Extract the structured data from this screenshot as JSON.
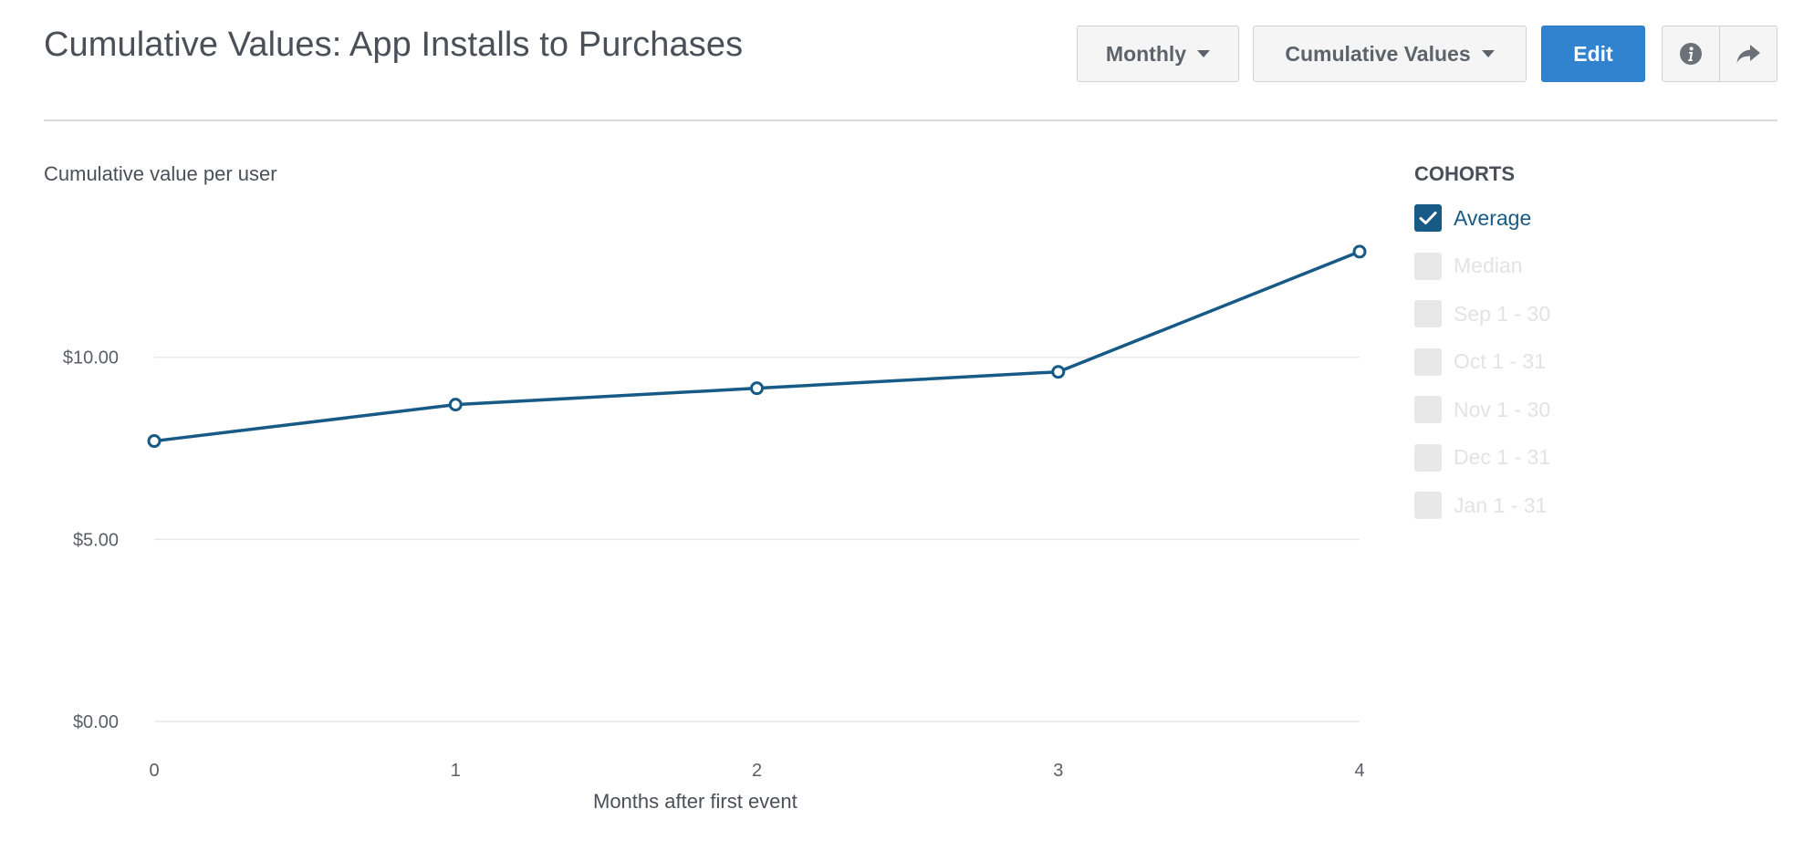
{
  "header": {
    "title": "Cumulative Values: App Installs to Purchases",
    "period_label": "Monthly",
    "metric_label": "Cumulative Values",
    "edit_label": "Edit"
  },
  "icons": {
    "info": "info-icon",
    "share": "share-icon",
    "dropdown": "caret-down-icon",
    "check": "check-icon"
  },
  "colors": {
    "series": "#175a86",
    "primary_button": "#3283cf",
    "inactive_checkbox": "#e8e8e8"
  },
  "chart_data": {
    "type": "line",
    "ylabel": "Cumulative value per user",
    "xlabel": "Months after first event",
    "x": [
      0,
      1,
      2,
      3,
      4
    ],
    "x_ticks": [
      "0",
      "1",
      "2",
      "3",
      "4"
    ],
    "y_ticks": [
      {
        "value": 0,
        "label": "$0.00"
      },
      {
        "value": 5,
        "label": "$5.00"
      },
      {
        "value": 10,
        "label": "$10.00"
      }
    ],
    "ylim": [
      0,
      13.9
    ],
    "grid": true,
    "series": [
      {
        "name": "Average",
        "values": [
          7.7,
          8.7,
          9.15,
          9.6,
          12.9
        ]
      }
    ],
    "legend_position": "right"
  },
  "legend": {
    "title": "COHORTS",
    "items": [
      {
        "label": "Average",
        "checked": true
      },
      {
        "label": "Median",
        "checked": false
      },
      {
        "label": "Sep 1 - 30",
        "checked": false
      },
      {
        "label": "Oct 1 - 31",
        "checked": false
      },
      {
        "label": "Nov 1 - 30",
        "checked": false
      },
      {
        "label": "Dec 1 - 31",
        "checked": false
      },
      {
        "label": "Jan 1 - 31",
        "checked": false
      }
    ]
  }
}
